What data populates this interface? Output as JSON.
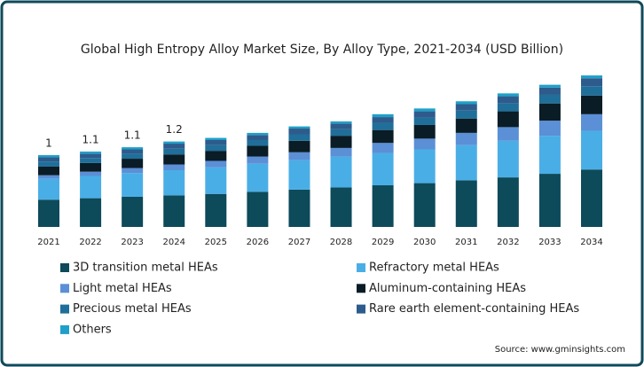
{
  "chart_data": {
    "type": "stacked-bar",
    "title": "Global High Entropy Alloy Market Size, By Alloy Type, 2021-2034 (USD Billion)",
    "categories": [
      "2021",
      "2022",
      "2023",
      "2024",
      "2025",
      "2026",
      "2027",
      "2028",
      "2029",
      "2030",
      "2031",
      "2032",
      "2033",
      "2034"
    ],
    "series": [
      {
        "name": "3D transition metal HEAs",
        "color": "#0d4a5a",
        "values": [
          0.38,
          0.4,
          0.42,
          0.44,
          0.46,
          0.49,
          0.52,
          0.55,
          0.58,
          0.61,
          0.65,
          0.69,
          0.74,
          0.8
        ]
      },
      {
        "name": "Refractory metal HEAs",
        "color": "#4aaee6",
        "values": [
          0.29,
          0.31,
          0.33,
          0.35,
          0.37,
          0.39,
          0.41,
          0.43,
          0.45,
          0.47,
          0.49,
          0.51,
          0.53,
          0.54
        ]
      },
      {
        "name": "Light metal HEAs",
        "color": "#5b8fd6",
        "values": [
          0.05,
          0.06,
          0.07,
          0.08,
          0.09,
          0.1,
          0.11,
          0.12,
          0.14,
          0.15,
          0.17,
          0.19,
          0.21,
          0.23
        ]
      },
      {
        "name": "Aluminum-containing HEAs",
        "color": "#0a1c26",
        "values": [
          0.12,
          0.12,
          0.13,
          0.14,
          0.14,
          0.15,
          0.16,
          0.17,
          0.18,
          0.19,
          0.2,
          0.22,
          0.24,
          0.26
        ]
      },
      {
        "name": "Precious metal HEAs",
        "color": "#1f6f9a",
        "values": [
          0.07,
          0.07,
          0.07,
          0.08,
          0.08,
          0.08,
          0.09,
          0.09,
          0.1,
          0.1,
          0.11,
          0.11,
          0.12,
          0.13
        ]
      },
      {
        "name": "Rare earth element-containing HEAs",
        "color": "#2d5b8c",
        "values": [
          0.06,
          0.06,
          0.06,
          0.07,
          0.07,
          0.07,
          0.08,
          0.08,
          0.08,
          0.09,
          0.09,
          0.1,
          0.1,
          0.11
        ]
      },
      {
        "name": "Others",
        "color": "#1fa0c8",
        "values": [
          0.03,
          0.03,
          0.03,
          0.03,
          0.03,
          0.03,
          0.03,
          0.03,
          0.04,
          0.04,
          0.04,
          0.04,
          0.04,
          0.04
        ]
      }
    ],
    "total_labels": [
      1,
      1.1,
      1.1,
      1.2,
      null,
      null,
      null,
      null,
      null,
      null,
      null,
      null,
      null,
      null
    ],
    "source": "Source: www.gminsights.com"
  }
}
